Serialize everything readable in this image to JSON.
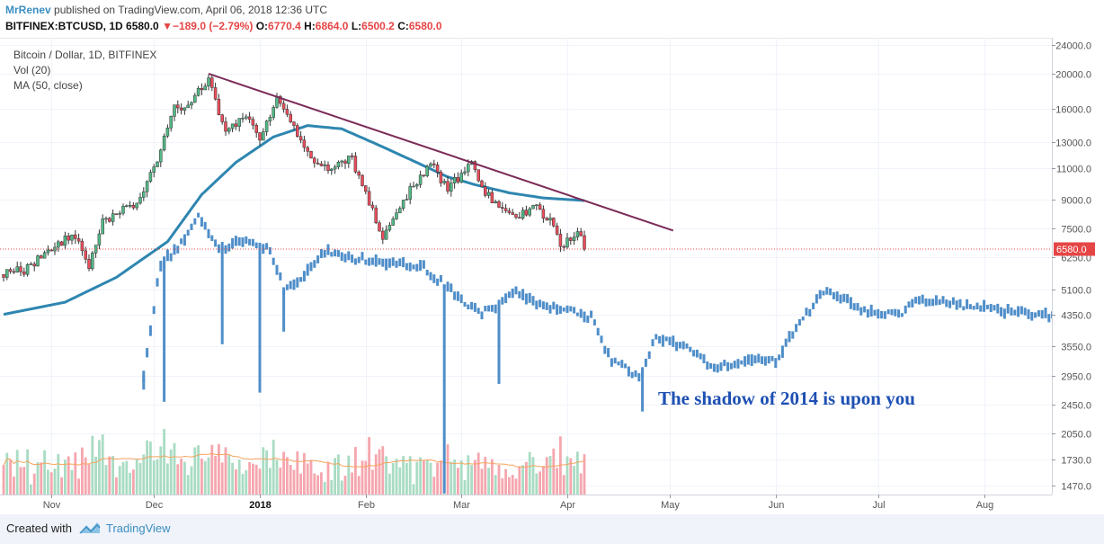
{
  "header": {
    "author": "MrRenev",
    "published_text": "published on TradingView.com, April 06, 2018 12:36 UTC",
    "symbol": "BITFINEX:BTCUSD, 1D",
    "last": "6580.0",
    "arrow": "▼",
    "change": "−189.0 (−2.79%)",
    "o_label": "O:",
    "o_value": "6770.4",
    "h_label": "H:",
    "h_value": "6864.0",
    "l_label": "L:",
    "l_value": "6500.2",
    "c_label": "C:",
    "c_value": "6580.0"
  },
  "legend": {
    "line1": "Bitcoin / Dollar, 1D, BITFINEX",
    "line2": "Vol (20)",
    "line3": "MA (50, close)"
  },
  "annotation": "The shadow of 2014 is upon you",
  "price_tag": "6580.0",
  "footer": {
    "created": "Created with",
    "brand": "TradingView"
  },
  "colors": {
    "up": "#53b987",
    "down": "#eb4d5c",
    "ma": "#2e86b0",
    "trend": "#7b2b58",
    "shadow": "#4f8ec9",
    "vol_up": "#a9dcc3",
    "vol_down": "#f5a6ae",
    "vol_ma": "#f7a35c",
    "price_line": "#e64545",
    "annotation": "#1e50b4"
  },
  "chart_data": {
    "type": "candlestick",
    "scale": "log",
    "x_ticks": [
      "Nov",
      "Dec",
      "2018",
      "Feb",
      "Mar",
      "Apr",
      "May",
      "Jun",
      "Jul",
      "Aug"
    ],
    "y_ticks": [
      1470,
      1730,
      2050,
      2450,
      2950,
      3550,
      4350,
      5100,
      6250,
      7500,
      9000,
      11000,
      13000,
      16000,
      20000,
      24000
    ],
    "y_tick_labels": [
      "1470.0",
      "1730.0",
      "2050.0",
      "2450.0",
      "2950.0",
      "3550.0",
      "4350.0",
      "5100.0",
      "6250.0",
      "7500.0",
      "9000.0",
      "11000.0",
      "13000.0",
      "16000.0",
      "20000.0",
      "24000.0"
    ],
    "ylim": [
      1350,
      26000
    ],
    "last_price": 6580,
    "close_anchors": [
      [
        "2017-10-18",
        5600
      ],
      [
        "2017-10-25",
        5800
      ],
      [
        "2017-11-01",
        6700
      ],
      [
        "2017-11-08",
        7200
      ],
      [
        "2017-11-12",
        5950
      ],
      [
        "2017-11-16",
        7800
      ],
      [
        "2017-11-25",
        8700
      ],
      [
        "2017-12-01",
        10800
      ],
      [
        "2017-12-07",
        16000
      ],
      [
        "2017-12-12",
        16800
      ],
      [
        "2017-12-17",
        19300
      ],
      [
        "2017-12-22",
        13900
      ],
      [
        "2017-12-27",
        15300
      ],
      [
        "2018-01-01",
        13500
      ],
      [
        "2018-01-06",
        17000
      ],
      [
        "2018-01-12",
        13800
      ],
      [
        "2018-01-17",
        11200
      ],
      [
        "2018-01-22",
        11000
      ],
      [
        "2018-01-28",
        11700
      ],
      [
        "2018-02-02",
        8800
      ],
      [
        "2018-02-06",
        7000
      ],
      [
        "2018-02-10",
        8500
      ],
      [
        "2018-02-16",
        10100
      ],
      [
        "2018-02-20",
        11300
      ],
      [
        "2018-02-25",
        9600
      ],
      [
        "2018-03-04",
        11400
      ],
      [
        "2018-03-08",
        9400
      ],
      [
        "2018-03-14",
        8200
      ],
      [
        "2018-03-17",
        7900
      ],
      [
        "2018-03-22",
        8700
      ],
      [
        "2018-03-27",
        7900
      ],
      [
        "2018-03-30",
        6800
      ],
      [
        "2018-04-02",
        7000
      ],
      [
        "2018-04-04",
        7400
      ],
      [
        "2018-04-06",
        6580
      ]
    ],
    "ma50_anchors": [
      [
        "2017-10-18",
        4350
      ],
      [
        "2017-11-05",
        4700
      ],
      [
        "2017-11-20",
        5500
      ],
      [
        "2017-12-05",
        6900
      ],
      [
        "2017-12-15",
        9300
      ],
      [
        "2017-12-25",
        11400
      ],
      [
        "2018-01-05",
        13400
      ],
      [
        "2018-01-15",
        14400
      ],
      [
        "2018-01-25",
        14100
      ],
      [
        "2018-02-05",
        12700
      ],
      [
        "2018-02-15",
        11500
      ],
      [
        "2018-02-25",
        10400
      ],
      [
        "2018-03-05",
        9900
      ],
      [
        "2018-03-15",
        9400
      ],
      [
        "2018-03-25",
        9100
      ],
      [
        "2018-04-06",
        8950
      ]
    ],
    "trendline": [
      [
        "2017-12-17",
        20000
      ],
      [
        "2018-05-02",
        7400
      ]
    ],
    "shadow_series_anchors": [
      [
        "2017-11-28",
        2950
      ],
      [
        "2017-12-03",
        6000
      ],
      [
        "2017-12-10",
        7000
      ],
      [
        "2017-12-14",
        8300
      ],
      [
        "2017-12-20",
        6600
      ],
      [
        "2017-12-28",
        7000
      ],
      [
        "2018-01-04",
        6500
      ],
      [
        "2018-01-08",
        5100
      ],
      [
        "2018-01-14",
        5600
      ],
      [
        "2018-01-20",
        6500
      ],
      [
        "2018-02-01",
        6100
      ],
      [
        "2018-02-10",
        6000
      ],
      [
        "2018-02-18",
        5900
      ],
      [
        "2018-02-28",
        4850
      ],
      [
        "2018-03-06",
        4400
      ],
      [
        "2018-03-12",
        4650
      ],
      [
        "2018-03-17",
        5050
      ],
      [
        "2018-03-22",
        4700
      ],
      [
        "2018-03-30",
        4500
      ],
      [
        "2018-04-08",
        4300
      ],
      [
        "2018-04-13",
        3350
      ],
      [
        "2018-04-22",
        2900
      ],
      [
        "2018-04-27",
        3800
      ],
      [
        "2018-05-06",
        3550
      ],
      [
        "2018-05-14",
        3100
      ],
      [
        "2018-05-24",
        3250
      ],
      [
        "2018-06-01",
        3250
      ],
      [
        "2018-06-08",
        4150
      ],
      [
        "2018-06-15",
        5000
      ],
      [
        "2018-06-22",
        4700
      ],
      [
        "2018-06-27",
        4400
      ],
      [
        "2018-07-08",
        4400
      ],
      [
        "2018-07-13",
        4800
      ],
      [
        "2018-07-26",
        4600
      ],
      [
        "2018-08-08",
        4450
      ],
      [
        "2018-08-22",
        4300
      ],
      [
        "2018-08-31",
        4200
      ]
    ],
    "shadow_spikes": [
      [
        "2017-11-28",
        2700
      ],
      [
        "2017-12-04",
        2500
      ],
      [
        "2017-12-21",
        3600
      ],
      [
        "2018-01-01",
        2650
      ],
      [
        "2018-01-08",
        3900
      ],
      [
        "2018-02-24",
        1400
      ],
      [
        "2018-03-12",
        2800
      ],
      [
        "2018-04-23",
        2350
      ]
    ]
  }
}
